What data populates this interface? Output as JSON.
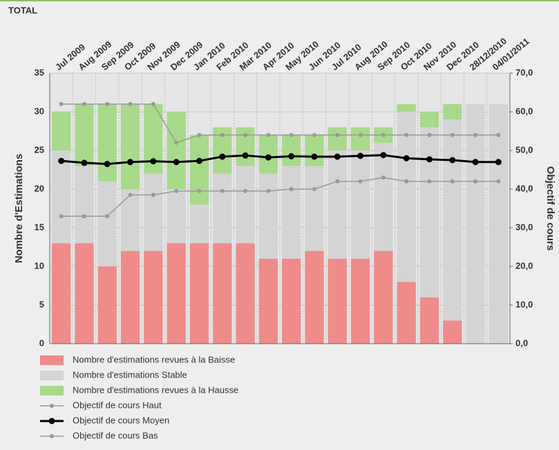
{
  "chart_data": {
    "type": "bar",
    "stacked": true,
    "title": "TOTAL",
    "y_label": "Nombre d'Estimations",
    "y2_label": "Objectif de cours",
    "categories": [
      "Jul 2009",
      "Aug 2009",
      "Sep 2009",
      "Oct 2009",
      "Nov 2009",
      "Dec 2009",
      "Jan 2010",
      "Feb 2010",
      "Mar 2010",
      "Apr 2010",
      "May 2010",
      "Jun 2010",
      "Jul 2010",
      "Aug 2010",
      "Sep 2010",
      "Oct 2010",
      "Nov 2010",
      "Dec 2010",
      "28/12/2010",
      "04/01/2011"
    ],
    "ylim": [
      0,
      35
    ],
    "yticks": [
      0,
      5,
      10,
      15,
      20,
      25,
      30,
      35
    ],
    "y2lim": [
      0,
      70
    ],
    "y2ticks": [
      {
        "value": 0,
        "label": "0,0"
      },
      {
        "value": 10,
        "label": "10,0"
      },
      {
        "value": 20,
        "label": "20,0"
      },
      {
        "value": 30,
        "label": "30,0"
      },
      {
        "value": 40,
        "label": "40,0"
      },
      {
        "value": 50,
        "label": "50,0"
      },
      {
        "value": 60,
        "label": "60,0"
      },
      {
        "value": 70,
        "label": "70,0"
      }
    ],
    "grid": true,
    "legend": "bottom",
    "series": [
      {
        "name": "Nombre d'estimations revues à la Baisse",
        "type": "bar",
        "color": "#ef8b8b",
        "values": [
          13,
          13,
          10,
          12,
          12,
          13,
          13,
          13,
          13,
          11,
          11,
          12,
          11,
          11,
          12,
          8,
          6,
          3,
          0,
          0
        ]
      },
      {
        "name": "Nombre d'estimations Stable",
        "type": "bar",
        "color": "#d4d4d4",
        "values": [
          12,
          10,
          11,
          8,
          10,
          7,
          5,
          9,
          10,
          11,
          12,
          11,
          14,
          14,
          14,
          22,
          22,
          26,
          31,
          31
        ]
      },
      {
        "name": "Nombre d'estimations revues à la Hausse",
        "type": "bar",
        "color": "#a9d98b",
        "values": [
          5,
          8,
          10,
          11,
          9,
          10,
          9,
          6,
          5,
          5,
          4,
          4,
          3,
          3,
          2,
          1,
          2,
          2,
          0,
          0
        ]
      },
      {
        "name": "Objectif de cours Haut",
        "type": "line",
        "axis": "y2",
        "color": "#999999",
        "values": [
          62,
          62,
          62,
          62,
          62,
          52,
          54,
          54,
          54,
          54,
          54,
          54,
          54,
          54,
          54,
          54,
          54,
          54,
          54,
          54
        ]
      },
      {
        "name": "Objectif de cours Moyen",
        "type": "line",
        "axis": "y2",
        "color": "#000000",
        "values": [
          47.3,
          46.8,
          46.5,
          47,
          47.2,
          47,
          47.3,
          48.4,
          48.7,
          48.2,
          48.5,
          48.4,
          48.4,
          48.6,
          48.8,
          48,
          47.7,
          47.5,
          47,
          47
        ]
      },
      {
        "name": "Objectif de cours Bas",
        "type": "line",
        "axis": "y2",
        "color": "#999999",
        "values": [
          33,
          33,
          33,
          38.5,
          38.5,
          39.5,
          39.5,
          39.5,
          39.5,
          39.5,
          40,
          40,
          42,
          42,
          43,
          42,
          42,
          42,
          42,
          42
        ]
      }
    ]
  }
}
